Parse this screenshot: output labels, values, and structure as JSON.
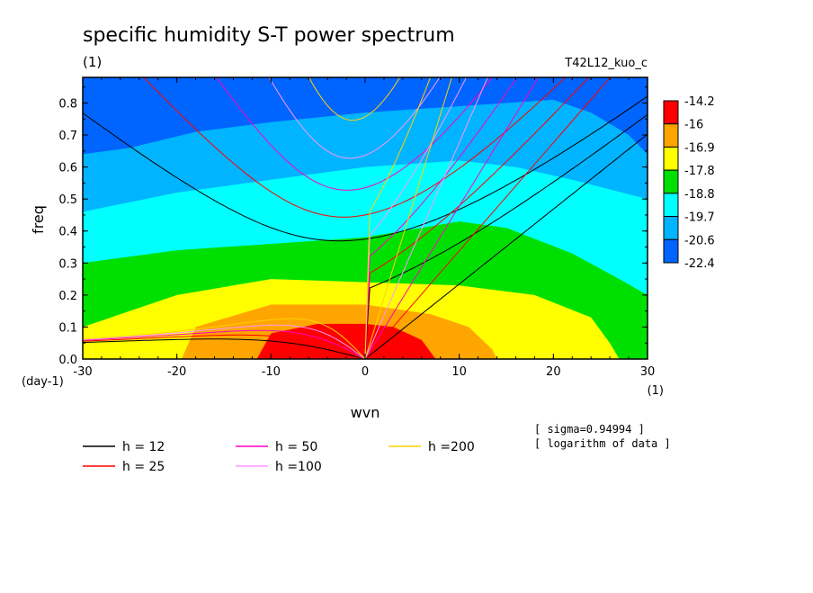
{
  "chart_data": {
    "type": "heatmap",
    "title": "specific humidity S-T power spectrum",
    "subtitle": "(1)",
    "run_label": "T42L12_kuo_c",
    "xlabel": "wvn",
    "ylabel": "freq",
    "x_unit": "(1)",
    "y_unit": "(day-1)",
    "xlim": [
      -30,
      30
    ],
    "ylim": [
      0,
      0.88
    ],
    "x_ticks": [
      "-30",
      "-20",
      "-10",
      "0",
      "10",
      "20",
      "30"
    ],
    "y_ticks": [
      "0.0",
      "0.1",
      "0.2",
      "0.3",
      "0.4",
      "0.5",
      "0.6",
      "0.7",
      "0.8"
    ],
    "colorbar": {
      "labels": [
        "-14.2",
        "-16",
        "-16.9",
        "-17.8",
        "-18.8",
        "-19.7",
        "-20.6",
        "-22.4"
      ],
      "colors": [
        "#ff0000",
        "#ffa500",
        "#ffff00",
        "#00e000",
        "#00ffff",
        "#00b4ff",
        "#0064ff"
      ]
    },
    "contour_boundaries": [
      {
        "level": "-16",
        "points": [
          [
            -11.5,
            0
          ],
          [
            -10,
            0.08
          ],
          [
            -5,
            0.11
          ],
          [
            0,
            0.11
          ],
          [
            3,
            0.1
          ],
          [
            6,
            0.06
          ],
          [
            7.5,
            0
          ]
        ]
      },
      {
        "level": "-16.9",
        "points": [
          [
            -19.5,
            0
          ],
          [
            -18,
            0.1
          ],
          [
            -10,
            0.17
          ],
          [
            0,
            0.17
          ],
          [
            7,
            0.14
          ],
          [
            11,
            0.1
          ],
          [
            13.5,
            0.03
          ],
          [
            14,
            0
          ]
        ]
      },
      {
        "level": "-17.8",
        "points": [
          [
            -30,
            0.1
          ],
          [
            -20,
            0.2
          ],
          [
            -10,
            0.25
          ],
          [
            0,
            0.24
          ],
          [
            10,
            0.23
          ],
          [
            18,
            0.2
          ],
          [
            24,
            0.13
          ],
          [
            26,
            0.05
          ],
          [
            27,
            0
          ]
        ]
      },
      {
        "level": "-18.8",
        "points": [
          [
            -30,
            0.3
          ],
          [
            -20,
            0.34
          ],
          [
            -10,
            0.36
          ],
          [
            0,
            0.38
          ],
          [
            10,
            0.43
          ],
          [
            15,
            0.41
          ],
          [
            22,
            0.33
          ],
          [
            27,
            0.25
          ],
          [
            30,
            0.2
          ]
        ]
      },
      {
        "level": "-19.7",
        "points": [
          [
            -30,
            0.46
          ],
          [
            -20,
            0.52
          ],
          [
            -10,
            0.56
          ],
          [
            0,
            0.6
          ],
          [
            10,
            0.62
          ],
          [
            16,
            0.6
          ],
          [
            22,
            0.56
          ],
          [
            30,
            0.5
          ]
        ]
      },
      {
        "level": "-20.6",
        "points": [
          [
            -30,
            0.64
          ],
          [
            -25,
            0.66
          ],
          [
            -18,
            0.71
          ],
          [
            -10,
            0.74
          ],
          [
            0,
            0.77
          ],
          [
            10,
            0.79
          ],
          [
            20,
            0.81
          ],
          [
            24,
            0.77
          ],
          [
            28,
            0.7
          ],
          [
            30,
            0.64
          ]
        ]
      }
    ],
    "dispersion_series": [
      {
        "name": "h = 12",
        "color": "#000000"
      },
      {
        "name": "h = 25",
        "color": "#ff0000"
      },
      {
        "name": "h = 50",
        "color": "#ff00c0"
      },
      {
        "name": "h =100",
        "color": "#ff96ff"
      },
      {
        "name": "h =200",
        "color": "#ffd200"
      }
    ],
    "annotations": [
      "[ sigma=0.94994 ]",
      "[ logarithm of data ]"
    ]
  }
}
